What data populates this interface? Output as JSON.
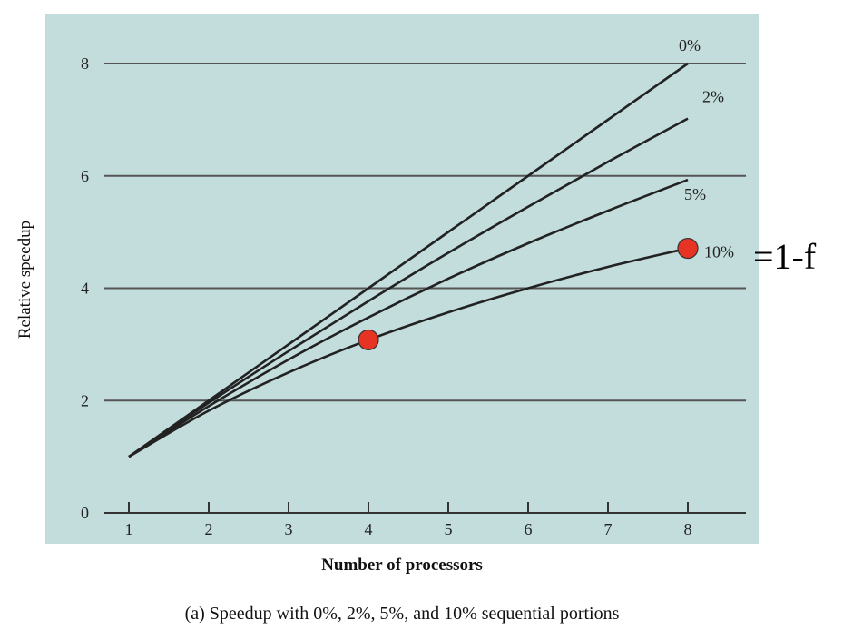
{
  "chart_data": {
    "type": "line",
    "title": "",
    "xlabel": "Number of processors",
    "ylabel": "Relative speedup",
    "caption": "(a) Speedup with 0%, 2%, 5%, and 10% sequential portions",
    "xlim": [
      1,
      8
    ],
    "ylim": [
      0,
      8
    ],
    "x_ticks": [
      "1",
      "2",
      "3",
      "4",
      "5",
      "6",
      "7",
      "8"
    ],
    "y_ticks": [
      "0",
      "2",
      "4",
      "6",
      "8"
    ],
    "grid": "horizontal",
    "background_color": "#c3dcdc",
    "line_color": "#222222",
    "series": [
      {
        "name": "0%",
        "x": [
          1,
          2,
          3,
          4,
          5,
          6,
          7,
          8
        ],
        "values": [
          1,
          2,
          3,
          4,
          5,
          6,
          7,
          8
        ]
      },
      {
        "name": "2%",
        "x": [
          1,
          2,
          3,
          4,
          5,
          6,
          7,
          8
        ],
        "values": [
          1,
          1.96,
          2.88,
          3.77,
          4.63,
          5.45,
          6.25,
          7.02
        ]
      },
      {
        "name": "5%",
        "x": [
          1,
          2,
          3,
          4,
          5,
          6,
          7,
          8
        ],
        "values": [
          1,
          1.9,
          2.73,
          3.48,
          4.17,
          4.8,
          5.38,
          5.93
        ]
      },
      {
        "name": "10%",
        "x": [
          1,
          2,
          3,
          4,
          5,
          6,
          7,
          8
        ],
        "values": [
          1,
          1.82,
          2.5,
          3.08,
          3.57,
          4.0,
          4.38,
          4.71
        ]
      }
    ],
    "highlight_points": [
      {
        "x": 4,
        "y": 3.08,
        "color": "#e63323"
      },
      {
        "x": 8,
        "y": 4.71,
        "color": "#e63323"
      }
    ],
    "annotation": "=1-f"
  }
}
